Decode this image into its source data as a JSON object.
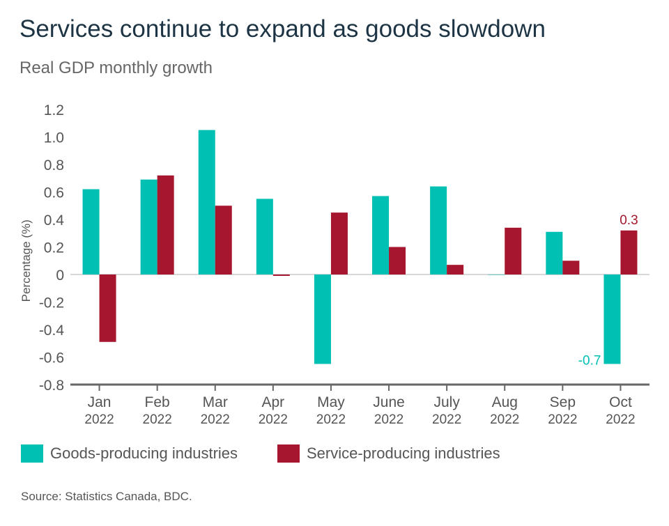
{
  "title": "Services continue to expand as goods slowdown",
  "subtitle": "Real GDP monthly growth",
  "source": "Source: Statistics Canada, BDC.",
  "chart_data": {
    "type": "bar",
    "categories": [
      [
        "Jan",
        "2022"
      ],
      [
        "Feb",
        "2022"
      ],
      [
        "Mar",
        "2022"
      ],
      [
        "Apr",
        "2022"
      ],
      [
        "May",
        "2022"
      ],
      [
        "June",
        "2022"
      ],
      [
        "July",
        "2022"
      ],
      [
        "Aug",
        "2022"
      ],
      [
        "Sep",
        "2022"
      ],
      [
        "Oct",
        "2022"
      ]
    ],
    "ylabel": "Percentage (%)",
    "ylim": [
      -0.8,
      1.2
    ],
    "yticks": [
      "1.2",
      "1.0",
      "0.8",
      "0.6",
      "0.4",
      "0.2",
      "0",
      "-0.2",
      "-0.4",
      "-0.6",
      "-0.8"
    ],
    "grid": false,
    "legend": "bottom",
    "series": [
      {
        "name": "Goods-producing industries",
        "color": "#00bfb3",
        "values": [
          0.62,
          0.69,
          1.05,
          0.55,
          -0.65,
          0.57,
          0.64,
          0.0,
          0.31,
          -0.65
        ]
      },
      {
        "name": "Service-producing industries",
        "color": "#a6162e",
        "values": [
          -0.49,
          0.72,
          0.5,
          -0.01,
          0.45,
          0.2,
          0.07,
          0.34,
          0.1,
          0.32
        ]
      }
    ],
    "annotations": [
      {
        "text": "-0.7",
        "series": 0,
        "category": "Oct"
      },
      {
        "text": "0.3",
        "series": 1,
        "category": "Oct"
      }
    ]
  }
}
